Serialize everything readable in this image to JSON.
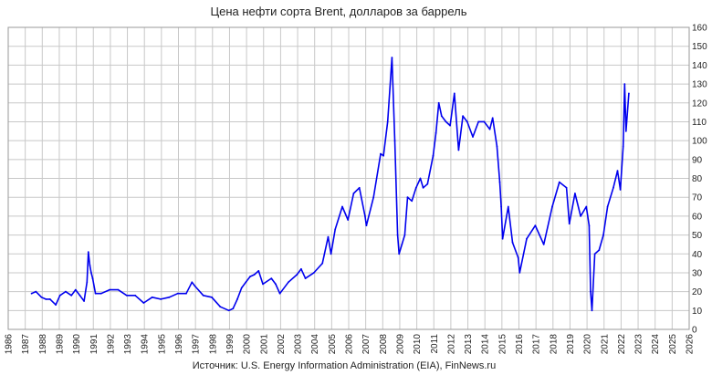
{
  "chart_data": {
    "type": "line",
    "title": "Цена нефти сорта Brent, долларов за баррель",
    "source": "Источник: U.S. Energy Information Administration (EIA), FinNews.ru",
    "xlabel": "",
    "ylabel": "",
    "xlim": [
      1986,
      2026
    ],
    "ylim": [
      0,
      160
    ],
    "x_ticks": [
      "1986",
      "1987",
      "1988",
      "1989",
      "1990",
      "1991",
      "1992",
      "1993",
      "1994",
      "1995",
      "1996",
      "1997",
      "1998",
      "1999",
      "2000",
      "2001",
      "2002",
      "2003",
      "2004",
      "2005",
      "2006",
      "2007",
      "2008",
      "2009",
      "2010",
      "2011",
      "2012",
      "2013",
      "2014",
      "2015",
      "2016",
      "2017",
      "2018",
      "2019",
      "2020",
      "2021",
      "2022",
      "2023",
      "2024",
      "2025",
      "2026"
    ],
    "y_ticks": [
      "0",
      "10",
      "20",
      "30",
      "40",
      "50",
      "60",
      "70",
      "80",
      "90",
      "100",
      "110",
      "120",
      "130",
      "140",
      "150",
      "160"
    ],
    "grid": true,
    "y_axis_side": "right",
    "line_color": "#0000ee",
    "grid_color": "#c8c8c8",
    "series": [
      {
        "x": [
          "1987-05",
          "1987-08",
          "1987-12",
          "1988-03",
          "1988-06",
          "1988-10",
          "1989-01",
          "1989-05",
          "1989-09",
          "1989-12",
          "1990-03",
          "1990-06",
          "1990-08",
          "1990-09",
          "1990-10",
          "1990-11",
          "1990-12",
          "1991-02",
          "1991-06",
          "1991-12",
          "1992-06",
          "1992-12",
          "1993-06",
          "1993-12",
          "1994-06",
          "1994-12",
          "1995-06",
          "1995-12",
          "1996-06",
          "1996-10",
          "1996-12",
          "1997-06",
          "1997-12",
          "1998-06",
          "1998-12",
          "1999-03",
          "1999-06",
          "1999-09",
          "1999-12",
          "2000-03",
          "2000-06",
          "2000-09",
          "2000-12",
          "2001-06",
          "2001-09",
          "2001-12",
          "2002-06",
          "2002-12",
          "2003-03",
          "2003-06",
          "2003-12",
          "2004-06",
          "2004-10",
          "2004-12",
          "2005-03",
          "2005-08",
          "2005-12",
          "2006-04",
          "2006-08",
          "2006-12",
          "2007-01",
          "2007-06",
          "2007-11",
          "2008-01",
          "2008-04",
          "2008-07",
          "2008-09",
          "2008-11",
          "2008-12",
          "2009-02",
          "2009-04",
          "2009-06",
          "2009-09",
          "2009-12",
          "2010-03",
          "2010-05",
          "2010-08",
          "2010-12",
          "2011-02",
          "2011-04",
          "2011-06",
          "2011-09",
          "2011-12",
          "2012-03",
          "2012-06",
          "2012-09",
          "2012-12",
          "2013-04",
          "2013-08",
          "2013-12",
          "2014-04",
          "2014-06",
          "2014-09",
          "2014-11",
          "2014-12",
          "2015-01",
          "2015-05",
          "2015-08",
          "2015-12",
          "2016-01",
          "2016-06",
          "2016-12",
          "2017-06",
          "2017-12",
          "2018-05",
          "2018-10",
          "2018-12",
          "2019-04",
          "2019-08",
          "2019-12",
          "2020-02",
          "2020-03",
          "2020-04",
          "2020-06",
          "2020-09",
          "2020-12",
          "2021-03",
          "2021-07",
          "2021-10",
          "2021-12",
          "2022-02",
          "2022-03",
          "2022-04",
          "2022-06"
        ],
        "values": [
          19,
          20,
          17,
          16,
          16,
          13,
          18,
          20,
          18,
          21,
          18,
          15,
          25,
          41,
          34,
          30,
          27,
          19,
          19,
          21,
          21,
          18,
          18,
          14,
          17,
          16,
          17,
          19,
          19,
          25,
          23,
          18,
          17,
          12,
          10,
          11,
          16,
          22,
          25,
          28,
          29,
          31,
          24,
          27,
          24,
          19,
          25,
          29,
          32,
          27,
          30,
          35,
          49,
          40,
          53,
          65,
          58,
          72,
          75,
          60,
          55,
          70,
          93,
          92,
          110,
          144,
          100,
          50,
          40,
          45,
          50,
          70,
          68,
          75,
          80,
          75,
          77,
          92,
          104,
          120,
          113,
          110,
          108,
          125,
          95,
          113,
          110,
          102,
          110,
          110,
          106,
          112,
          97,
          78,
          65,
          48,
          65,
          46,
          38,
          30,
          48,
          55,
          45,
          65,
          78,
          75,
          56,
          72,
          60,
          65,
          55,
          20,
          10,
          40,
          42,
          50,
          65,
          75,
          84,
          74,
          97,
          130,
          105,
          125
        ]
      }
    ]
  }
}
